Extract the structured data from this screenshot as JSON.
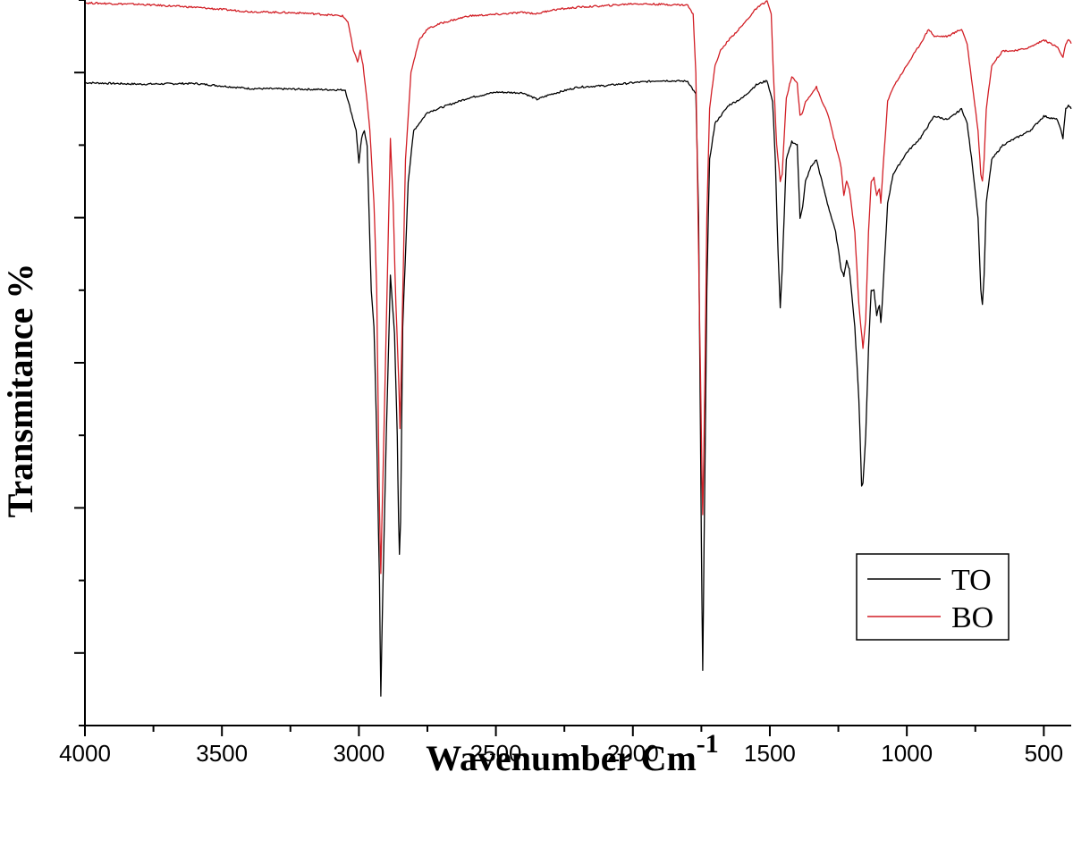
{
  "chart_data": {
    "type": "line",
    "xlabel": "Wavenumber Cm",
    "xlabel_superscript": "-1",
    "ylabel": "Transmitance %",
    "xlim": [
      4000,
      400
    ],
    "x_reversed": true,
    "ylim": [
      0,
      100
    ],
    "x_ticks": [
      4000,
      3500,
      3000,
      2500,
      2000,
      1500,
      1000,
      500
    ],
    "x_minor_step": 250,
    "y_tick_labels_shown": false,
    "y_major_ticks": [
      10,
      30,
      50,
      70,
      90
    ],
    "y_minor_ticks": [
      0,
      20,
      40,
      60,
      80,
      100
    ],
    "grid": false,
    "legend_position": "bottom-right",
    "series": [
      {
        "name": "TO",
        "color": "#000000",
        "points": [
          [
            4000,
            88.6
          ],
          [
            3800,
            88.4
          ],
          [
            3600,
            88.5
          ],
          [
            3400,
            87.8
          ],
          [
            3200,
            87.7
          ],
          [
            3050,
            87.6
          ],
          [
            3010,
            82
          ],
          [
            3000,
            77.5
          ],
          [
            2990,
            81
          ],
          [
            2980,
            82
          ],
          [
            2970,
            80
          ],
          [
            2955,
            60
          ],
          [
            2945,
            55
          ],
          [
            2935,
            40
          ],
          [
            2925,
            20
          ],
          [
            2920,
            4
          ],
          [
            2912,
            20
          ],
          [
            2900,
            40
          ],
          [
            2885,
            62
          ],
          [
            2870,
            54
          ],
          [
            2860,
            40
          ],
          [
            2855,
            28
          ],
          [
            2852,
            23.5
          ],
          [
            2848,
            28
          ],
          [
            2840,
            55
          ],
          [
            2820,
            75
          ],
          [
            2800,
            82
          ],
          [
            2750,
            84.5
          ],
          [
            2600,
            86.5
          ],
          [
            2500,
            87.3
          ],
          [
            2400,
            87.2
          ],
          [
            2350,
            86.3
          ],
          [
            2300,
            87.0
          ],
          [
            2200,
            88.0
          ],
          [
            2100,
            88.2
          ],
          [
            2000,
            88.6
          ],
          [
            1900,
            88.9
          ],
          [
            1800,
            88.8
          ],
          [
            1770,
            87
          ],
          [
            1760,
            70
          ],
          [
            1750,
            25
          ],
          [
            1745,
            7.5
          ],
          [
            1740,
            25
          ],
          [
            1730,
            60
          ],
          [
            1720,
            78
          ],
          [
            1700,
            83
          ],
          [
            1650,
            85.5
          ],
          [
            1600,
            86.5
          ],
          [
            1550,
            88.3
          ],
          [
            1510,
            88.9
          ],
          [
            1490,
            86
          ],
          [
            1480,
            78
          ],
          [
            1470,
            65
          ],
          [
            1462,
            57.5
          ],
          [
            1455,
            63
          ],
          [
            1440,
            78
          ],
          [
            1420,
            80.5
          ],
          [
            1400,
            80
          ],
          [
            1390,
            70
          ],
          [
            1380,
            71.5
          ],
          [
            1370,
            75
          ],
          [
            1350,
            77
          ],
          [
            1330,
            78
          ],
          [
            1310,
            75
          ],
          [
            1290,
            72
          ],
          [
            1260,
            68
          ],
          [
            1240,
            63
          ],
          [
            1230,
            62
          ],
          [
            1220,
            64
          ],
          [
            1210,
            63
          ],
          [
            1190,
            55
          ],
          [
            1175,
            45
          ],
          [
            1165,
            33
          ],
          [
            1160,
            33.5
          ],
          [
            1150,
            40
          ],
          [
            1140,
            52
          ],
          [
            1130,
            60
          ],
          [
            1120,
            60
          ],
          [
            1110,
            56.5
          ],
          [
            1100,
            58
          ],
          [
            1095,
            55.5
          ],
          [
            1090,
            58
          ],
          [
            1070,
            72
          ],
          [
            1050,
            76
          ],
          [
            1000,
            79
          ],
          [
            950,
            81
          ],
          [
            900,
            84
          ],
          [
            850,
            83.5
          ],
          [
            800,
            85
          ],
          [
            780,
            83
          ],
          [
            760,
            77
          ],
          [
            740,
            70
          ],
          [
            730,
            60
          ],
          [
            724,
            58
          ],
          [
            718,
            62
          ],
          [
            710,
            72
          ],
          [
            690,
            78
          ],
          [
            650,
            80
          ],
          [
            600,
            81
          ],
          [
            550,
            82
          ],
          [
            500,
            84
          ],
          [
            450,
            83.5
          ],
          [
            430,
            81
          ],
          [
            420,
            85
          ],
          [
            410,
            85.5
          ],
          [
            400,
            85
          ]
        ]
      },
      {
        "name": "BO",
        "color": "#d21f26",
        "points": [
          [
            4000,
            99.6
          ],
          [
            3800,
            99.4
          ],
          [
            3600,
            99.0
          ],
          [
            3400,
            98.4
          ],
          [
            3200,
            98.2
          ],
          [
            3060,
            97.8
          ],
          [
            3040,
            97
          ],
          [
            3020,
            93
          ],
          [
            3005,
            91.5
          ],
          [
            2995,
            93
          ],
          [
            2985,
            91
          ],
          [
            2970,
            86
          ],
          [
            2960,
            82
          ],
          [
            2945,
            72
          ],
          [
            2935,
            60
          ],
          [
            2925,
            30
          ],
          [
            2920,
            21
          ],
          [
            2912,
            35
          ],
          [
            2900,
            55
          ],
          [
            2885,
            81
          ],
          [
            2875,
            72
          ],
          [
            2865,
            58
          ],
          [
            2855,
            48
          ],
          [
            2850,
            41
          ],
          [
            2845,
            50
          ],
          [
            2830,
            78
          ],
          [
            2810,
            90
          ],
          [
            2780,
            94.5
          ],
          [
            2750,
            96
          ],
          [
            2700,
            96.8
          ],
          [
            2600,
            97.8
          ],
          [
            2500,
            98.0
          ],
          [
            2400,
            98.3
          ],
          [
            2350,
            98.1
          ],
          [
            2300,
            98.6
          ],
          [
            2200,
            99.0
          ],
          [
            2100,
            99.2
          ],
          [
            2000,
            99.5
          ],
          [
            1900,
            99.4
          ],
          [
            1800,
            99.3
          ],
          [
            1780,
            98
          ],
          [
            1770,
            90
          ],
          [
            1760,
            65
          ],
          [
            1750,
            40
          ],
          [
            1745,
            29
          ],
          [
            1740,
            40
          ],
          [
            1730,
            70
          ],
          [
            1720,
            85
          ],
          [
            1700,
            91
          ],
          [
            1680,
            93
          ],
          [
            1650,
            94.5
          ],
          [
            1600,
            96.5
          ],
          [
            1550,
            98.8
          ],
          [
            1510,
            99.9
          ],
          [
            1495,
            98
          ],
          [
            1485,
            88
          ],
          [
            1475,
            80
          ],
          [
            1462,
            75
          ],
          [
            1455,
            76
          ],
          [
            1440,
            86.5
          ],
          [
            1420,
            89.5
          ],
          [
            1400,
            88.5
          ],
          [
            1390,
            84
          ],
          [
            1380,
            84.5
          ],
          [
            1370,
            86
          ],
          [
            1350,
            87
          ],
          [
            1330,
            88
          ],
          [
            1310,
            86
          ],
          [
            1290,
            84.5
          ],
          [
            1260,
            80
          ],
          [
            1240,
            77
          ],
          [
            1230,
            73
          ],
          [
            1220,
            75
          ],
          [
            1210,
            74
          ],
          [
            1190,
            68
          ],
          [
            1175,
            58
          ],
          [
            1160,
            52
          ],
          [
            1150,
            56
          ],
          [
            1140,
            68
          ],
          [
            1130,
            75
          ],
          [
            1120,
            75.5
          ],
          [
            1110,
            73
          ],
          [
            1100,
            74
          ],
          [
            1095,
            72
          ],
          [
            1090,
            75
          ],
          [
            1070,
            86
          ],
          [
            1050,
            88
          ],
          [
            1000,
            91
          ],
          [
            950,
            94
          ],
          [
            920,
            96
          ],
          [
            900,
            95
          ],
          [
            850,
            95
          ],
          [
            800,
            96
          ],
          [
            780,
            94
          ],
          [
            760,
            88
          ],
          [
            740,
            82
          ],
          [
            730,
            76
          ],
          [
            724,
            75
          ],
          [
            718,
            78
          ],
          [
            710,
            85
          ],
          [
            690,
            91
          ],
          [
            650,
            93
          ],
          [
            600,
            93
          ],
          [
            550,
            93.5
          ],
          [
            500,
            94.5
          ],
          [
            450,
            93.5
          ],
          [
            430,
            92
          ],
          [
            420,
            94
          ],
          [
            410,
            94.5
          ],
          [
            400,
            94
          ]
        ]
      }
    ]
  }
}
